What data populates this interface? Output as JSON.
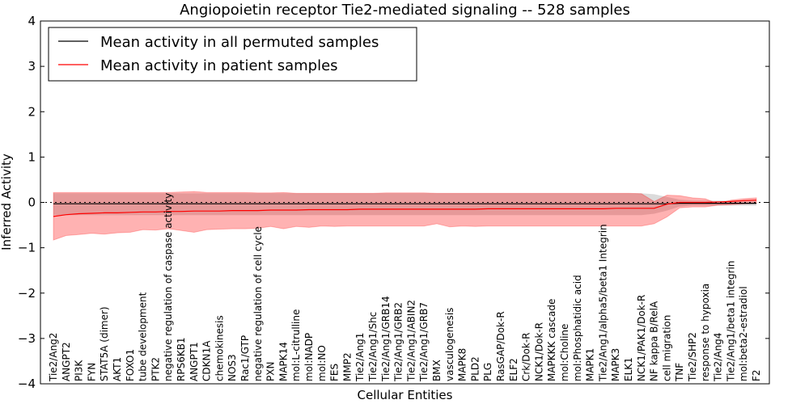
{
  "chart_data": {
    "type": "line",
    "title": "Angiopoietin receptor Tie2-mediated signaling -- 528 samples",
    "xlabel": "Cellular Entities",
    "ylabel": "Inferred Activity",
    "ylim": [
      -4,
      4
    ],
    "yticks": [
      -4,
      -3,
      -2,
      -1,
      0,
      1,
      2,
      3,
      4
    ],
    "ytick_labels": [
      "−4",
      "−3",
      "−2",
      "−1",
      "0",
      "1",
      "2",
      "3",
      "4"
    ],
    "grid": false,
    "legend_position": "top-left",
    "reference_line": 0,
    "colors": {
      "permuted": "#000000",
      "patient": "#ff0000",
      "permuted_band": "#bdbdbd",
      "patient_band": "#ff0000"
    },
    "categories": [
      "Tie2/Ang2",
      "ANGPT2",
      "PI3K",
      "FYN",
      "STAT5A (dimer)",
      "AKT1",
      "FOXO1",
      "tube development",
      "PTK2",
      "negative regulation of caspase activity",
      "RPS6KB1",
      "ANGPT1",
      "CDKN1A",
      "chemokinesis",
      "NOS3",
      "Rac1/GTP",
      "negative regulation of cell cycle",
      "PXN",
      "MAPK14",
      "mol:L-citrulline",
      "mol:NADP",
      "mol:NO",
      "FES",
      "MMP2",
      "Tie2/Ang1",
      "Tie2/Ang1/Shc",
      "Tie2/Ang1/GRB14",
      "Tie2/Ang1/GRB2",
      "Tie2/Ang1/ABIN2",
      "Tie2/Ang1/GRB7",
      "BMX",
      "vasculogenesis",
      "MAPK8",
      "PLD2",
      "PLG",
      "RasGAP/Dok-R",
      "ELF2",
      "Crk/Dok-R",
      "NCK1/Dok-R",
      "MAPKKK cascade",
      "mol:Choline",
      "mol:Phosphatidic acid",
      "MAPK1",
      "Tie2/Ang1/alpha5/beta1 Integrin",
      "MAPK3",
      "ELK1",
      "NCK1/PAK1/Dok-R",
      "NF kappa B/RelA",
      "cell migration",
      "TNF",
      "Tie2/SHP2",
      "response to hypoxia",
      "Tie2/Ang4",
      "Tie2/Ang1/beta1 integrin",
      "mol:beta2-estradiol",
      "F2"
    ],
    "series": [
      {
        "name": "Mean activity in all permuted samples",
        "color": "#000000",
        "values": [
          -0.03,
          -0.03,
          -0.03,
          -0.03,
          -0.03,
          -0.03,
          -0.03,
          -0.03,
          -0.03,
          -0.03,
          -0.03,
          -0.03,
          -0.03,
          -0.03,
          -0.03,
          -0.03,
          -0.03,
          -0.03,
          -0.03,
          -0.03,
          -0.03,
          -0.03,
          -0.03,
          -0.03,
          -0.03,
          -0.03,
          -0.03,
          -0.03,
          -0.03,
          -0.03,
          -0.03,
          -0.03,
          -0.03,
          -0.03,
          -0.03,
          -0.03,
          -0.03,
          -0.03,
          -0.03,
          -0.03,
          -0.03,
          -0.03,
          -0.03,
          -0.03,
          -0.03,
          -0.03,
          -0.03,
          -0.03,
          -0.03,
          -0.02,
          -0.02,
          -0.02,
          -0.02,
          -0.02,
          -0.02,
          -0.02
        ],
        "upper": [
          0.2,
          0.2,
          0.2,
          0.2,
          0.2,
          0.2,
          0.2,
          0.2,
          0.2,
          0.2,
          0.2,
          0.2,
          0.2,
          0.2,
          0.2,
          0.2,
          0.2,
          0.2,
          0.2,
          0.2,
          0.2,
          0.2,
          0.2,
          0.2,
          0.2,
          0.2,
          0.2,
          0.2,
          0.2,
          0.2,
          0.2,
          0.2,
          0.2,
          0.2,
          0.2,
          0.2,
          0.2,
          0.2,
          0.2,
          0.2,
          0.2,
          0.2,
          0.2,
          0.2,
          0.2,
          0.2,
          0.2,
          0.18,
          0.12,
          0.06,
          0.04,
          0.04,
          0.04,
          0.04,
          0.04,
          0.04
        ],
        "lower": [
          -0.28,
          -0.28,
          -0.28,
          -0.28,
          -0.28,
          -0.28,
          -0.28,
          -0.28,
          -0.28,
          -0.28,
          -0.28,
          -0.28,
          -0.28,
          -0.28,
          -0.28,
          -0.28,
          -0.28,
          -0.28,
          -0.28,
          -0.28,
          -0.28,
          -0.28,
          -0.28,
          -0.28,
          -0.28,
          -0.28,
          -0.28,
          -0.28,
          -0.28,
          -0.28,
          -0.28,
          -0.28,
          -0.28,
          -0.28,
          -0.28,
          -0.28,
          -0.28,
          -0.28,
          -0.28,
          -0.28,
          -0.28,
          -0.28,
          -0.28,
          -0.28,
          -0.28,
          -0.28,
          -0.28,
          -0.25,
          -0.18,
          -0.09,
          -0.07,
          -0.07,
          -0.07,
          -0.07,
          -0.07,
          -0.07
        ]
      },
      {
        "name": "Mean activity in patient samples",
        "color": "#ff0000",
        "values": [
          -0.31,
          -0.27,
          -0.25,
          -0.24,
          -0.23,
          -0.23,
          -0.22,
          -0.21,
          -0.21,
          -0.2,
          -0.2,
          -0.19,
          -0.19,
          -0.19,
          -0.18,
          -0.18,
          -0.18,
          -0.17,
          -0.17,
          -0.17,
          -0.16,
          -0.16,
          -0.16,
          -0.16,
          -0.15,
          -0.15,
          -0.15,
          -0.15,
          -0.15,
          -0.15,
          -0.15,
          -0.15,
          -0.15,
          -0.15,
          -0.14,
          -0.14,
          -0.14,
          -0.14,
          -0.14,
          -0.14,
          -0.14,
          -0.14,
          -0.14,
          -0.14,
          -0.13,
          -0.13,
          -0.13,
          -0.13,
          -0.04,
          0.0,
          0.0,
          0.0,
          0.01,
          0.02,
          0.04,
          0.05
        ],
        "upper": [
          0.22,
          0.22,
          0.22,
          0.22,
          0.22,
          0.22,
          0.22,
          0.22,
          0.22,
          0.22,
          0.23,
          0.24,
          0.22,
          0.22,
          0.22,
          0.22,
          0.21,
          0.21,
          0.22,
          0.2,
          0.2,
          0.2,
          0.2,
          0.2,
          0.2,
          0.2,
          0.21,
          0.21,
          0.21,
          0.21,
          0.2,
          0.2,
          0.2,
          0.2,
          0.2,
          0.2,
          0.2,
          0.2,
          0.2,
          0.2,
          0.2,
          0.2,
          0.2,
          0.2,
          0.2,
          0.2,
          0.19,
          0.02,
          0.16,
          0.15,
          0.1,
          0.08,
          -0.03,
          0.05,
          0.08,
          0.1
        ],
        "lower": [
          -0.83,
          -0.73,
          -0.71,
          -0.68,
          -0.7,
          -0.67,
          -0.66,
          -0.6,
          -0.61,
          -0.58,
          -0.62,
          -0.66,
          -0.6,
          -0.59,
          -0.58,
          -0.58,
          -0.57,
          -0.53,
          -0.58,
          -0.53,
          -0.55,
          -0.52,
          -0.53,
          -0.52,
          -0.52,
          -0.52,
          -0.52,
          -0.52,
          -0.52,
          -0.52,
          -0.47,
          -0.54,
          -0.52,
          -0.53,
          -0.52,
          -0.52,
          -0.52,
          -0.52,
          -0.52,
          -0.52,
          -0.52,
          -0.52,
          -0.52,
          -0.52,
          -0.52,
          -0.52,
          -0.52,
          -0.47,
          -0.32,
          -0.12,
          -0.1,
          -0.1,
          -0.06,
          -0.05,
          -0.03,
          -0.02
        ]
      }
    ]
  }
}
